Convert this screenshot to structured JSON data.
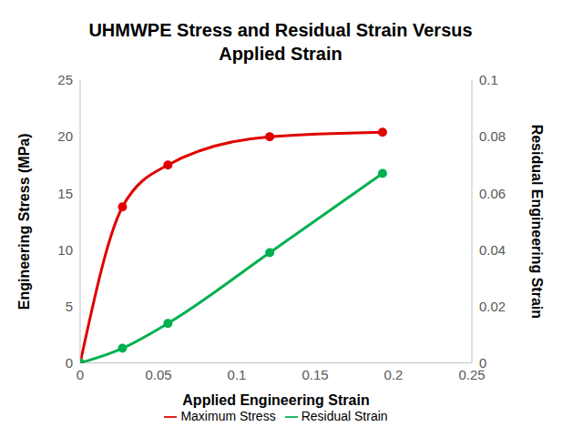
{
  "chart_data": {
    "type": "line",
    "title": "UHMWPE Stress and Residual Strain Versus Applied Strain",
    "x_label": "Applied Engineering Strain",
    "y_label": "Engineering Stress (MPa)",
    "y2_label": "Residual Engineering Strain",
    "x": [
      0,
      0.027,
      0.056,
      0.121,
      0.193
    ],
    "series": [
      {
        "name": "Maximum Stress",
        "color": "#e00000",
        "values": [
          0,
          13.8,
          17.5,
          20.0,
          20.4
        ],
        "marker": "circle",
        "line_style": "solid"
      },
      {
        "name": "Residual Strain",
        "color": "#00b050",
        "values": [
          0,
          0.0052,
          0.014,
          0.039,
          0.067
        ],
        "marker": "circle",
        "line_style": "solid",
        "axis": "y2"
      }
    ],
    "xlim": [
      0,
      0.25
    ],
    "xticks": [
      0,
      0.05,
      0.1,
      0.15,
      0.2,
      0.25
    ],
    "ylim": [
      0,
      25
    ],
    "yticks": [
      0,
      5,
      10,
      15,
      20,
      25
    ],
    "y2lim": [
      0,
      0.1
    ],
    "y2ticks": [
      0,
      0.02,
      0.04,
      0.06,
      0.08,
      0.1
    ],
    "grid": false,
    "legend": "bottom"
  }
}
